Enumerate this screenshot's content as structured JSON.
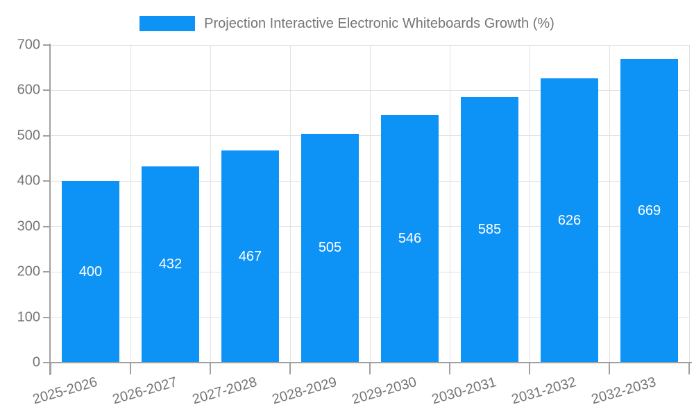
{
  "legend": {
    "swatch_color": "#0d92f6"
  },
  "chart_data": {
    "type": "bar",
    "title": "Projection Interactive Electronic Whiteboards Growth (%)",
    "categories": [
      "2025-2026",
      "2026-2027",
      "2027-2028",
      "2028-2029",
      "2029-2030",
      "2030-2031",
      "2031-2032",
      "2032-2033"
    ],
    "values": [
      400,
      432,
      467,
      505,
      546,
      585,
      626,
      669
    ],
    "xlabel": "",
    "ylabel": "",
    "ylim": [
      0,
      700
    ],
    "yticks": [
      0,
      100,
      200,
      300,
      400,
      500,
      600,
      700
    ],
    "grid": true,
    "legend_position": "top-center",
    "colors": {
      "bar": "#0d92f6",
      "value_label": "#ffffff",
      "axis": "#a0a0a0",
      "gridline": "#e2e2e2",
      "tick_label": "#757575"
    }
  }
}
